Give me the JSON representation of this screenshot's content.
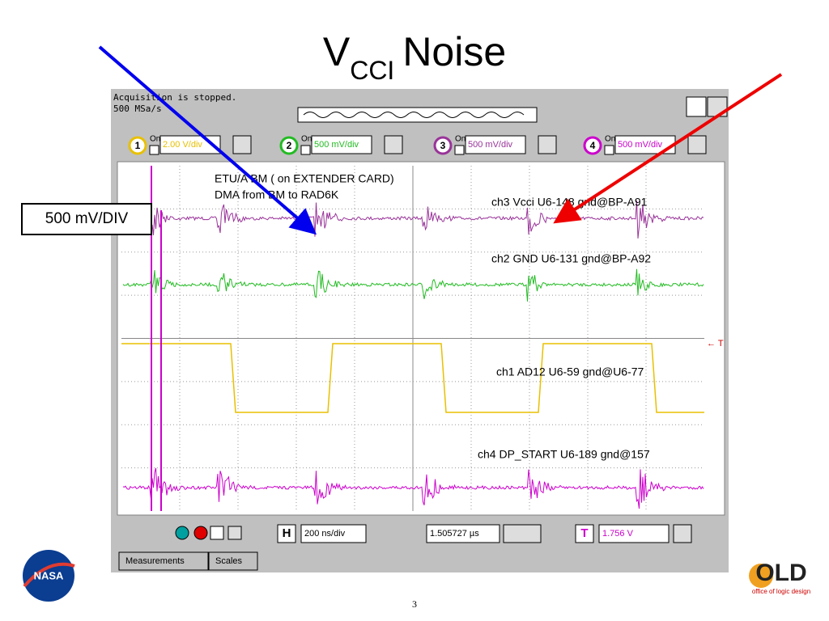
{
  "title": {
    "main": "V",
    "subscript": "CCI",
    "suffix": "Noise"
  },
  "scope": {
    "status": [
      "Acquisition is stopped.",
      "500 MSa/s"
    ],
    "channels": [
      {
        "number": "1",
        "on": "On",
        "scale": "2.00 V/div"
      },
      {
        "number": "2",
        "on": "On",
        "scale": "500 mV/div"
      },
      {
        "number": "3",
        "on": "On",
        "scale": "500 mV/div"
      },
      {
        "number": "4",
        "on": "On",
        "scale": "500 mV/div"
      }
    ],
    "annotations": [
      "ETU/A BM ( on EXTENDER CARD)",
      "DMA from BM to RAD6K",
      "ch3 Vcci U6-148 gnd@BP-A91",
      "ch2 GND U6-131 gnd@BP-A92",
      "ch1 AD12 U6-59 gnd@U6-77",
      "ch4 DP_START U6-189 gnd@157"
    ],
    "trigger_marker": "← T",
    "toolbar": {
      "h": "H",
      "timebase": "200 ns/div",
      "delay": "1.505727 µs",
      "trigger": "T",
      "trigger_level": "1.756 V"
    },
    "tabs": [
      "Measurements",
      "Scales"
    ]
  },
  "callout": "500 mV/DIV",
  "logos": {
    "nasa": "NASA",
    "old": "OLD",
    "old_tagline": "office of logic design"
  },
  "page_number": "3"
}
